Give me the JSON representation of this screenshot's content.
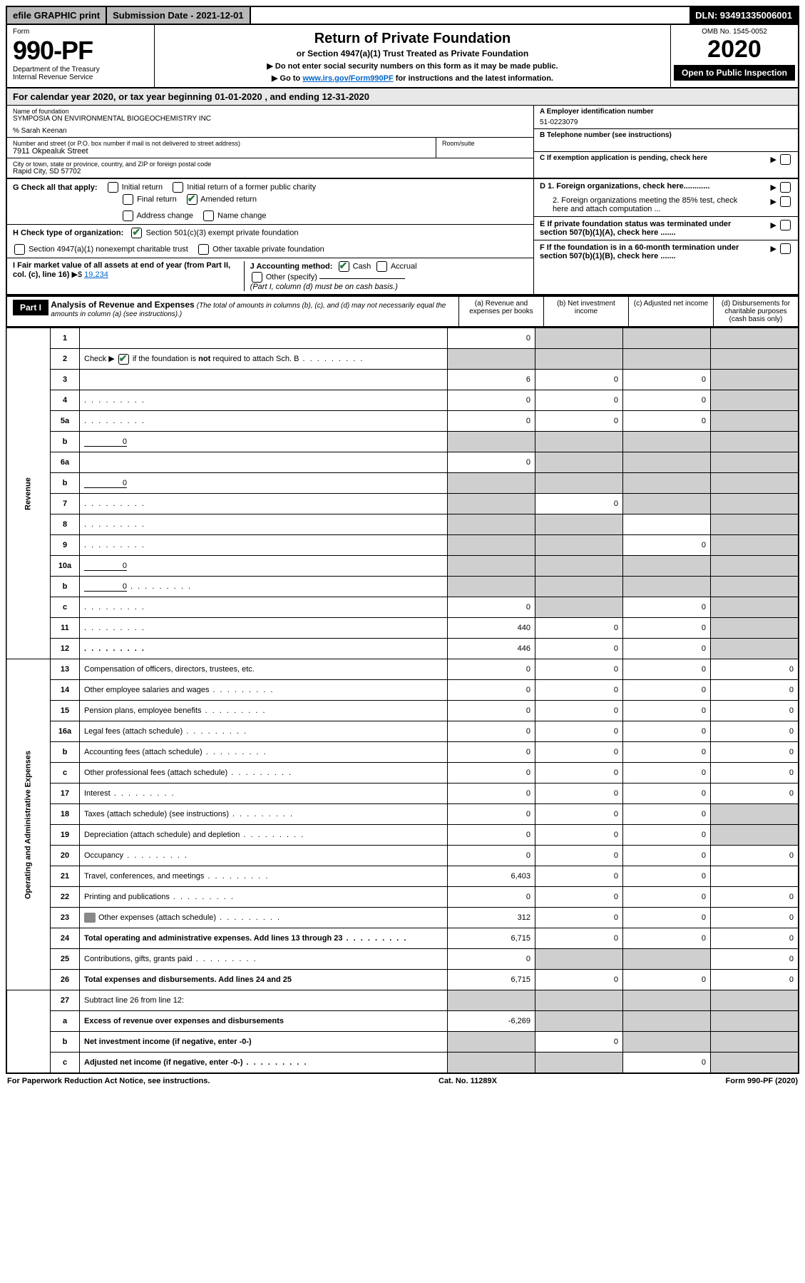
{
  "topbar": {
    "efile": "efile GRAPHIC print",
    "subdate_label": "Submission Date - 2021-12-01",
    "dln": "DLN: 93491335006001"
  },
  "header": {
    "form_label": "Form",
    "form_number": "990-PF",
    "dept1": "Department of the Treasury",
    "dept2": "Internal Revenue Service",
    "title": "Return of Private Foundation",
    "subtitle": "or Section 4947(a)(1) Trust Treated as Private Foundation",
    "note1": "▶ Do not enter social security numbers on this form as it may be made public.",
    "note2_pre": "▶ Go to ",
    "note2_link": "www.irs.gov/Form990PF",
    "note2_post": " for instructions and the latest information.",
    "omb": "OMB No. 1545-0052",
    "year": "2020",
    "open": "Open to Public Inspection"
  },
  "calyear": "For calendar year 2020, or tax year beginning 01-01-2020             , and ending 12-31-2020",
  "id": {
    "name_label": "Name of foundation",
    "name": "SYMPOSIA ON ENVIRONMENTAL BIOGEOCHEMISTRY INC",
    "careof": "% Sarah Keenan",
    "addr_label": "Number and street (or P.O. box number if mail is not delivered to street address)",
    "addr": "7911 Okpealuk Street",
    "room_label": "Room/suite",
    "city_label": "City or town, state or province, country, and ZIP or foreign postal code",
    "city": "Rapid City, SD  57702",
    "ein_label": "A Employer identification number",
    "ein": "51-0223079",
    "tel_label": "B Telephone number (see instructions)",
    "c_label": "C If exemption application is pending, check here",
    "d1": "D 1. Foreign organizations, check here............",
    "d2": "2. Foreign organizations meeting the 85% test, check here and attach computation ...",
    "e": "E  If private foundation status was terminated under section 507(b)(1)(A), check here .......",
    "f": "F  If the foundation is in a 60-month termination under section 507(b)(1)(B), check here ......."
  },
  "g": {
    "label": "G Check all that apply:",
    "initial": "Initial return",
    "initial_former": "Initial return of a former public charity",
    "final": "Final return",
    "amended": "Amended return",
    "address": "Address change",
    "namechg": "Name change"
  },
  "h": {
    "label": "H Check type of organization:",
    "501c3": "Section 501(c)(3) exempt private foundation",
    "4947": "Section 4947(a)(1) nonexempt charitable trust",
    "other_tax": "Other taxable private foundation"
  },
  "i": {
    "label": "I Fair market value of all assets at end of year (from Part II, col. (c), line 16)",
    "value": "19,234"
  },
  "j": {
    "label": "J Accounting method:",
    "cash": "Cash",
    "accrual": "Accrual",
    "other": "Other (specify)",
    "note": "(Part I, column (d) must be on cash basis.)"
  },
  "part1": {
    "label": "Part I",
    "title": "Analysis of Revenue and Expenses",
    "note": "(The total of amounts in columns (b), (c), and (d) may not necessarily equal the amounts in column (a) (see instructions).)",
    "col_a": "(a)   Revenue and expenses per books",
    "col_b": "(b)   Net investment income",
    "col_c": "(c)   Adjusted net income",
    "col_d": "(d)  Disbursements for charitable purposes (cash basis only)"
  },
  "side": {
    "revenue": "Revenue",
    "expenses": "Operating and Administrative Expenses"
  },
  "rows": [
    {
      "n": "1",
      "d": "",
      "a": "0",
      "b": "",
      "c": "",
      "sb": true,
      "sc": true,
      "sd": true
    },
    {
      "n": "2",
      "d": "",
      "a": "",
      "b": "",
      "c": "",
      "sa": true,
      "sb": true,
      "sc": true,
      "sd": true,
      "checked": true,
      "dots": true
    },
    {
      "n": "3",
      "d": "",
      "a": "6",
      "b": "0",
      "c": "0",
      "sd": true
    },
    {
      "n": "4",
      "d": "",
      "a": "0",
      "b": "0",
      "c": "0",
      "sd": true,
      "dots": true
    },
    {
      "n": "5a",
      "d": "",
      "a": "0",
      "b": "0",
      "c": "0",
      "sd": true,
      "dots": true
    },
    {
      "n": "b",
      "d": "",
      "inline": "0",
      "a": "",
      "b": "",
      "c": "",
      "sa": true,
      "sb": true,
      "sc": true,
      "sd": true
    },
    {
      "n": "6a",
      "d": "",
      "a": "0",
      "b": "",
      "c": "",
      "sb": true,
      "sc": true,
      "sd": true
    },
    {
      "n": "b",
      "d": "",
      "inline": "0",
      "a": "",
      "b": "",
      "c": "",
      "sa": true,
      "sb": true,
      "sc": true,
      "sd": true
    },
    {
      "n": "7",
      "d": "",
      "a": "",
      "b": "0",
      "c": "",
      "sa": true,
      "sc": true,
      "sd": true,
      "dots": true
    },
    {
      "n": "8",
      "d": "",
      "a": "",
      "b": "",
      "c": "",
      "sa": true,
      "sb": true,
      "sd": true,
      "dots": true
    },
    {
      "n": "9",
      "d": "",
      "a": "",
      "b": "",
      "c": "0",
      "sa": true,
      "sb": true,
      "sd": true,
      "dots": true
    },
    {
      "n": "10a",
      "d": "",
      "inline": "0",
      "a": "",
      "b": "",
      "c": "",
      "sa": true,
      "sb": true,
      "sc": true,
      "sd": true
    },
    {
      "n": "b",
      "d": "",
      "inline": "0",
      "a": "",
      "b": "",
      "c": "",
      "sa": true,
      "sb": true,
      "sc": true,
      "sd": true,
      "dots": true
    },
    {
      "n": "c",
      "d": "",
      "a": "0",
      "b": "",
      "c": "0",
      "sb": true,
      "sd": true,
      "dots": true
    },
    {
      "n": "11",
      "d": "",
      "a": "440",
      "b": "0",
      "c": "0",
      "sd": true,
      "dots": true
    },
    {
      "n": "12",
      "d": "",
      "a": "446",
      "b": "0",
      "c": "0",
      "sd": true,
      "bold": true,
      "dots": true
    }
  ],
  "exp_rows": [
    {
      "n": "13",
      "d": "Compensation of officers, directors, trustees, etc.",
      "a": "0",
      "b": "0",
      "c": "0",
      "dd": "0"
    },
    {
      "n": "14",
      "d": "Other employee salaries and wages",
      "a": "0",
      "b": "0",
      "c": "0",
      "dd": "0",
      "dots": true
    },
    {
      "n": "15",
      "d": "Pension plans, employee benefits",
      "a": "0",
      "b": "0",
      "c": "0",
      "dd": "0",
      "dots": true
    },
    {
      "n": "16a",
      "d": "Legal fees (attach schedule)",
      "a": "0",
      "b": "0",
      "c": "0",
      "dd": "0",
      "dots": true
    },
    {
      "n": "b",
      "d": "Accounting fees (attach schedule)",
      "a": "0",
      "b": "0",
      "c": "0",
      "dd": "0",
      "dots": true
    },
    {
      "n": "c",
      "d": "Other professional fees (attach schedule)",
      "a": "0",
      "b": "0",
      "c": "0",
      "dd": "0",
      "dots": true
    },
    {
      "n": "17",
      "d": "Interest",
      "a": "0",
      "b": "0",
      "c": "0",
      "dd": "0",
      "dots": true
    },
    {
      "n": "18",
      "d": "Taxes (attach schedule) (see instructions)",
      "a": "0",
      "b": "0",
      "c": "0",
      "dd": "",
      "sd": true,
      "dots": true
    },
    {
      "n": "19",
      "d": "Depreciation (attach schedule) and depletion",
      "a": "0",
      "b": "0",
      "c": "0",
      "dd": "",
      "sd": true,
      "dots": true
    },
    {
      "n": "20",
      "d": "Occupancy",
      "a": "0",
      "b": "0",
      "c": "0",
      "dd": "0",
      "dots": true
    },
    {
      "n": "21",
      "d": "Travel, conferences, and meetings",
      "a": "6,403",
      "b": "0",
      "c": "0",
      "dd": "",
      "dots": true
    },
    {
      "n": "22",
      "d": "Printing and publications",
      "a": "0",
      "b": "0",
      "c": "0",
      "dd": "0",
      "dots": true
    },
    {
      "n": "23",
      "d": "Other expenses (attach schedule)",
      "a": "312",
      "b": "0",
      "c": "0",
      "dd": "0",
      "dots": true,
      "icon": true
    },
    {
      "n": "24",
      "d": "Total operating and administrative expenses. Add lines 13 through 23",
      "a": "6,715",
      "b": "0",
      "c": "0",
      "dd": "0",
      "bold": true,
      "dots": true
    },
    {
      "n": "25",
      "d": "Contributions, gifts, grants paid",
      "a": "0",
      "b": "",
      "c": "",
      "dd": "0",
      "sb": true,
      "sc": true,
      "dots": true
    },
    {
      "n": "26",
      "d": "Total expenses and disbursements. Add lines 24 and 25",
      "a": "6,715",
      "b": "0",
      "c": "0",
      "dd": "0",
      "bold": true
    }
  ],
  "net_rows": [
    {
      "n": "27",
      "d": "Subtract line 26 from line 12:",
      "a": "",
      "b": "",
      "c": "",
      "dd": "",
      "sa": true,
      "sb": true,
      "sc": true,
      "sd": true
    },
    {
      "n": "a",
      "d": "Excess of revenue over expenses and disbursements",
      "a": "-6,269",
      "b": "",
      "c": "",
      "dd": "",
      "sb": true,
      "sc": true,
      "sd": true,
      "bold": true
    },
    {
      "n": "b",
      "d": "Net investment income (if negative, enter -0-)",
      "a": "",
      "b": "0",
      "c": "",
      "dd": "",
      "sa": true,
      "sc": true,
      "sd": true,
      "bold": true
    },
    {
      "n": "c",
      "d": "Adjusted net income (if negative, enter -0-)",
      "a": "",
      "b": "",
      "c": "0",
      "dd": "",
      "sa": true,
      "sb": true,
      "sd": true,
      "bold": true,
      "dots": true
    }
  ],
  "footer": {
    "left": "For Paperwork Reduction Act Notice, see instructions.",
    "mid": "Cat. No. 11289X",
    "right": "Form 990-PF (2020)"
  }
}
